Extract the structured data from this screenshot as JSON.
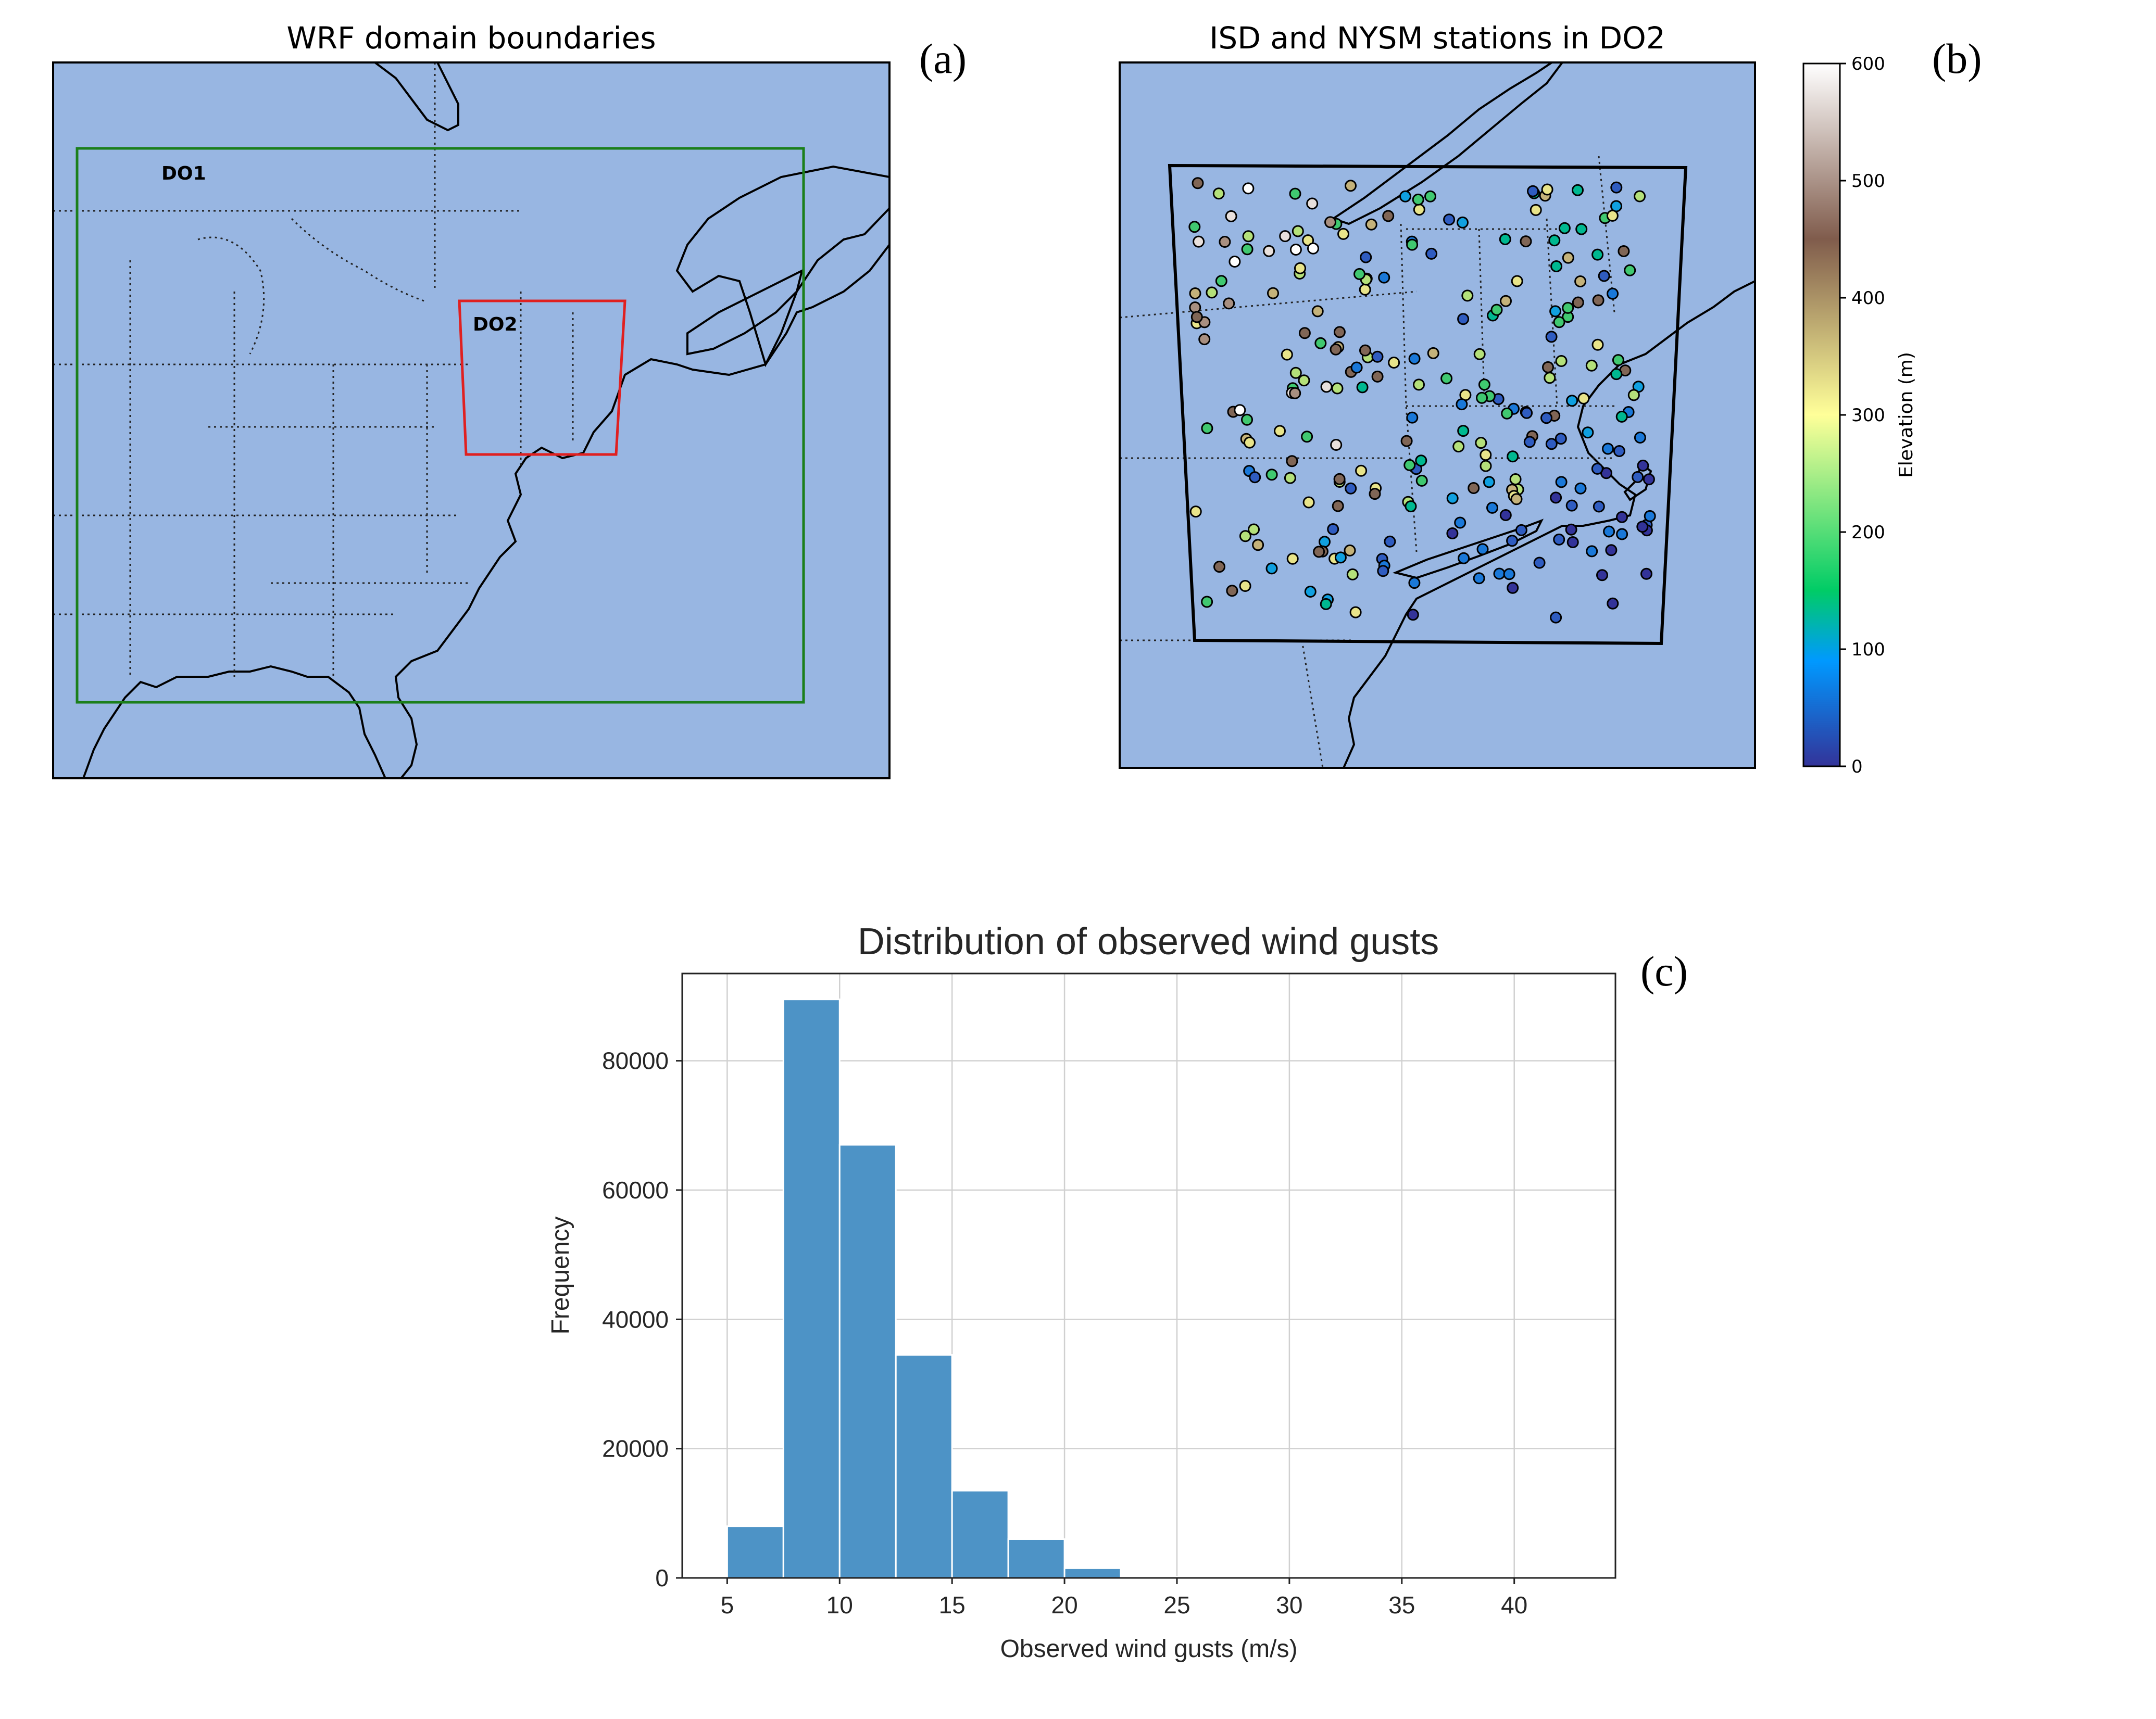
{
  "panel_a": {
    "title": "WRF domain boundaries",
    "label": "(a)",
    "domain_labels": {
      "outer": "DO1",
      "inner": "DO2"
    },
    "colors": {
      "outer_box": "#1b7f1b",
      "inner_box": "#e02020",
      "land": "#efecdc",
      "ocean": "#98b6e2"
    }
  },
  "panel_b": {
    "title": "ISD and NYSM stations in DO2",
    "label": "(b)",
    "colorbar": {
      "label": "Elevation (m)",
      "ticks": [
        "0",
        "100",
        "200",
        "300",
        "400",
        "500",
        "600"
      ],
      "range": [
        0,
        600
      ],
      "colormap": "terrain"
    }
  },
  "panel_c": {
    "label": "(c)",
    "chart_data": {
      "type": "bar",
      "title": "Distribution of observed wind gusts",
      "xlabel": "Observed wind gusts (m/s)",
      "ylabel": "Frequency",
      "xlim": [
        3,
        44.5
      ],
      "ylim": [
        0,
        93500
      ],
      "x_ticks": [
        5,
        10,
        15,
        20,
        25,
        30,
        35,
        40
      ],
      "y_ticks": [
        0,
        20000,
        40000,
        60000,
        80000
      ],
      "bin_edges": [
        5,
        7.5,
        10,
        12.5,
        15,
        17.5,
        20,
        22.5,
        25,
        27.5,
        30,
        32.5,
        35,
        37.5,
        40,
        42.5
      ],
      "values": [
        8000,
        89500,
        67000,
        34500,
        13500,
        6000,
        1500,
        200,
        50,
        20,
        10,
        5,
        3,
        2,
        1
      ],
      "bar_color": "#4d93c6",
      "grid": true
    }
  }
}
